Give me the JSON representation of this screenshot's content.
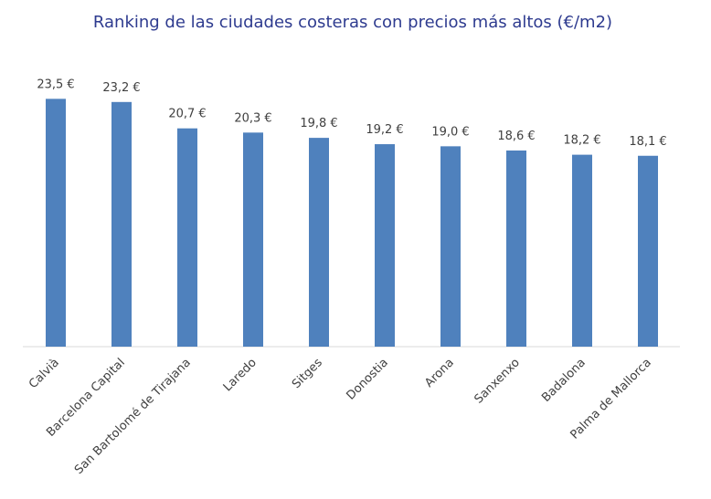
{
  "chart_data": {
    "type": "bar",
    "title": "Ranking de las ciudades costeras con precios más altos (€/m2)",
    "categories": [
      "Calvià",
      "Barcelona Capital",
      "San Bartolomé de Tirajana",
      "Laredo",
      "Sitges",
      "Donostia",
      "Arona",
      "Sanxenxo",
      "Badalona",
      "Palma de Mallorca"
    ],
    "values": [
      23.5,
      23.2,
      20.7,
      20.3,
      19.8,
      19.2,
      19.0,
      18.6,
      18.2,
      18.1
    ],
    "value_labels": [
      "23,5 €",
      "23,2 €",
      "20,7 €",
      "20,3 €",
      "19,8 €",
      "19,2 €",
      "19,0 €",
      "18,6 €",
      "18,2 €",
      "18,1 €"
    ],
    "color": "#4f81bd",
    "ylim": [
      0,
      25
    ]
  }
}
